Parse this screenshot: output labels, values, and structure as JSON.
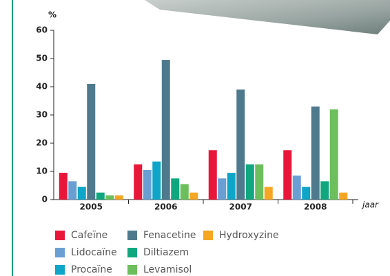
{
  "chart_data": {
    "type": "bar",
    "y_label": "%",
    "x_label": "jaar",
    "categories": [
      "2005",
      "2006",
      "2007",
      "2008"
    ],
    "series": [
      {
        "name": "Cafeïne",
        "color": "#e8173a",
        "values": [
          9.5,
          12.5,
          17.5,
          17.5
        ]
      },
      {
        "name": "Lidocaïne",
        "color": "#6a9fd4",
        "values": [
          6.5,
          10.5,
          7.5,
          8.5
        ]
      },
      {
        "name": "Procaïne",
        "color": "#0ea5c8",
        "values": [
          4.5,
          13.5,
          9.5,
          4.5
        ]
      },
      {
        "name": "Fenacetine",
        "color": "#4f7a8e",
        "values": [
          41,
          49.5,
          39,
          33
        ]
      },
      {
        "name": "Diltiazem",
        "color": "#10a77f",
        "values": [
          2.5,
          7.5,
          12.5,
          6.5
        ]
      },
      {
        "name": "Levamisol",
        "color": "#6dbf5d",
        "values": [
          1.5,
          5.5,
          12.5,
          32
        ]
      },
      {
        "name": "Hydroxyzine",
        "color": "#f5a623",
        "values": [
          1.5,
          2.5,
          4.5,
          2.5
        ]
      }
    ],
    "ylim": [
      0,
      60
    ],
    "yticks": [
      0,
      10,
      20,
      30,
      40,
      50,
      60
    ],
    "legend_rows": 3
  }
}
